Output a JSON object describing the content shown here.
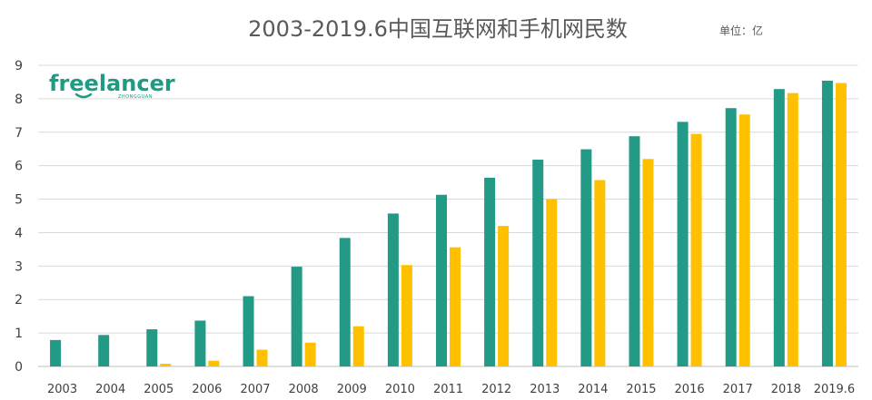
{
  "chart_data": {
    "type": "bar",
    "title": "2003-2019.6中国互联网和手机网民数",
    "unit_label": "单位：亿",
    "categories": [
      "2003",
      "2004",
      "2005",
      "2006",
      "2007",
      "2008",
      "2009",
      "2010",
      "2011",
      "2012",
      "2013",
      "2014",
      "2015",
      "2016",
      "2017",
      "2018",
      "2019.6"
    ],
    "series": [
      {
        "color": "#239a85",
        "values": [
          0.79,
          0.94,
          1.11,
          1.37,
          2.1,
          2.98,
          3.84,
          4.57,
          5.13,
          5.64,
          6.18,
          6.49,
          6.88,
          7.31,
          7.72,
          8.29,
          8.54
        ]
      },
      {
        "color": "#ffc000",
        "values": [
          0,
          0,
          0.08,
          0.17,
          0.5,
          0.71,
          1.2,
          3.03,
          3.56,
          4.2,
          5.0,
          5.57,
          6.2,
          6.95,
          7.53,
          8.17,
          8.47
        ]
      }
    ],
    "ylim": [
      0,
      9
    ],
    "yticks": [
      0,
      1,
      2,
      3,
      4,
      5,
      6,
      7,
      8,
      9
    ],
    "grid": true,
    "legend": "none"
  },
  "logo": {
    "text": "freelancer",
    "subtext": "ZHONGGUAN",
    "color": "#1f9b84"
  }
}
